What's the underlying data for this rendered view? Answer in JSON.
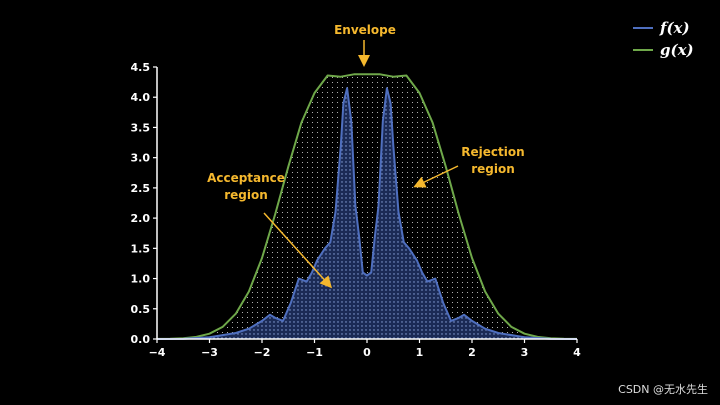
{
  "colors": {
    "background": "#000000",
    "f": "#4f6fbf",
    "g": "#6fa84a",
    "annotation": "#f5b82e",
    "axis": "#ffffff",
    "acceptance_dots": "#8fa8e0",
    "rejection_dots": "#e6e6e6"
  },
  "legend": {
    "items": [
      {
        "label": "f(x)",
        "color": "#4f6fbf"
      },
      {
        "label": "g(x)",
        "color": "#6fa84a"
      }
    ]
  },
  "annotations": {
    "envelope": "Envelope",
    "acceptance_line1": "Acceptance",
    "acceptance_line2": "region",
    "rejection_line1": "Rejection",
    "rejection_line2": "region"
  },
  "watermark": "CSDN @无水先生",
  "chart_data": {
    "type": "line",
    "xlim": [
      -4,
      4
    ],
    "ylim": [
      0,
      4.5
    ],
    "x_ticks": [
      -4,
      -3,
      -2,
      -1,
      0,
      1,
      2,
      3,
      4
    ],
    "x_tick_labels": [
      "−4",
      "−3",
      "−2",
      "−1",
      "0",
      "1",
      "2",
      "3",
      "4"
    ],
    "y_ticks": [
      0,
      0.5,
      1,
      1.5,
      2,
      2.5,
      3,
      3.5,
      4,
      4.5
    ],
    "y_tick_labels": [
      "0.0",
      "0.5",
      "1.0",
      "1.5",
      "2.0",
      "2.5",
      "3.0",
      "3.5",
      "4.0",
      "4.5"
    ],
    "grid": false,
    "legend_position": "top-right",
    "series": [
      {
        "name": "f(x)",
        "x": [
          -4,
          -3.5,
          -3,
          -2.5,
          -2.25,
          -2,
          -1.85,
          -1.75,
          -1.6,
          -1.45,
          -1.3,
          -1.15,
          -1.05,
          -0.95,
          -0.8,
          -0.7,
          -0.6,
          -0.5,
          -0.45,
          -0.38,
          -0.3,
          -0.22,
          -0.15,
          -0.08,
          0,
          0.08,
          0.15,
          0.22,
          0.3,
          0.38,
          0.45,
          0.5,
          0.6,
          0.7,
          0.8,
          0.95,
          1.05,
          1.15,
          1.3,
          1.45,
          1.6,
          1.75,
          1.85,
          2,
          2.25,
          2.5,
          3,
          3.5,
          4
        ],
        "y": [
          0,
          0.002,
          0.03,
          0.1,
          0.17,
          0.3,
          0.4,
          0.35,
          0.3,
          0.6,
          1.0,
          0.95,
          1.1,
          1.3,
          1.5,
          1.6,
          2.1,
          3.2,
          3.9,
          4.15,
          3.6,
          2.2,
          1.7,
          1.1,
          1.05,
          1.1,
          1.7,
          2.2,
          3.6,
          4.15,
          3.9,
          3.2,
          2.1,
          1.6,
          1.5,
          1.3,
          1.1,
          0.95,
          1.0,
          0.6,
          0.3,
          0.35,
          0.4,
          0.3,
          0.17,
          0.1,
          0.03,
          0.002,
          0
        ]
      },
      {
        "name": "g(x)",
        "formula_note": "",
        "x": [
          -4,
          -3.75,
          -3.5,
          -3.25,
          -3,
          -2.75,
          -2.5,
          -2.25,
          -2,
          -1.75,
          -1.5,
          -1.25,
          -1,
          -0.75,
          -0.5,
          -0.25,
          0,
          0.25,
          0.5,
          0.75,
          1,
          1.25,
          1.5,
          1.75,
          2,
          2.25,
          2.5,
          2.75,
          3,
          3.25,
          3.5,
          3.75,
          4
        ],
        "y": [
          0.001,
          0.004,
          0.012,
          0.034,
          0.087,
          0.201,
          0.418,
          0.786,
          1.34,
          2.06,
          2.85,
          3.58,
          4.07,
          4.36,
          4.34,
          4.38,
          4.38,
          4.38,
          4.34,
          4.36,
          4.07,
          3.58,
          2.85,
          2.06,
          1.34,
          0.786,
          0.418,
          0.201,
          0.087,
          0.034,
          0.012,
          0.004,
          0.001
        ]
      }
    ]
  }
}
